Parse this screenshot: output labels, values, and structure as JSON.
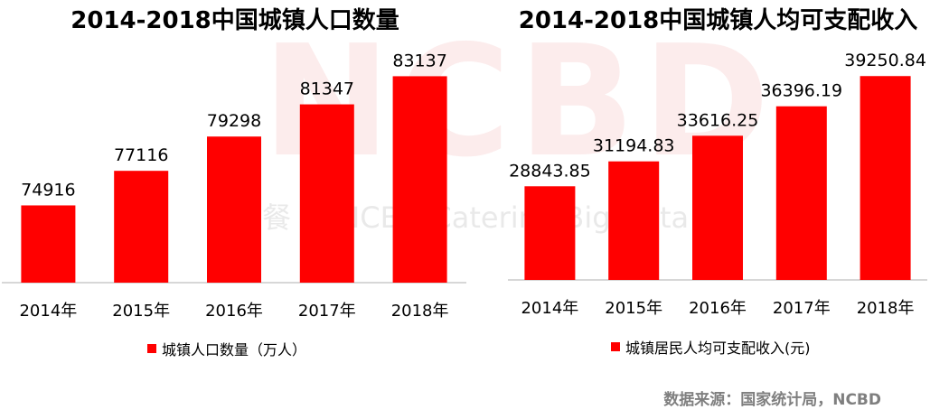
{
  "chart_data": [
    {
      "type": "bar",
      "title": "2014-2018中国城镇人口数量",
      "categories": [
        "2014年",
        "2015年",
        "2016年",
        "2017年",
        "2018年"
      ],
      "series": [
        {
          "name": "城镇人口数量（万人）",
          "values": [
            74916,
            77116,
            79298,
            81347,
            83137
          ],
          "color": "#ff0000"
        }
      ],
      "value_labels": [
        "74916",
        "77116",
        "79298",
        "81347",
        "83137"
      ],
      "ylim": [
        70000,
        85000
      ],
      "grid": false,
      "legend_position": "bottom"
    },
    {
      "type": "bar",
      "title": "2014-2018中国城镇人均可支配收入",
      "categories": [
        "2014年",
        "2015年",
        "2016年",
        "2017年",
        "2018年"
      ],
      "series": [
        {
          "name": "城镇居民人均可支配收入(元)",
          "values": [
            28843.85,
            31194.83,
            33616.25,
            36396.19,
            39250.84
          ],
          "color": "#ff0000"
        }
      ],
      "value_labels": [
        "28843.85",
        "31194.83",
        "33616.25",
        "36396.19",
        "39250.84"
      ],
      "ylim": [
        20000,
        42000
      ],
      "grid": false,
      "legend_position": "bottom"
    }
  ],
  "source_note": "数据来源：国家统计局，NCBD",
  "watermark": {
    "logo_text": "NCBD",
    "tagline": "餐 眼 NCBD Catering Big Data"
  }
}
